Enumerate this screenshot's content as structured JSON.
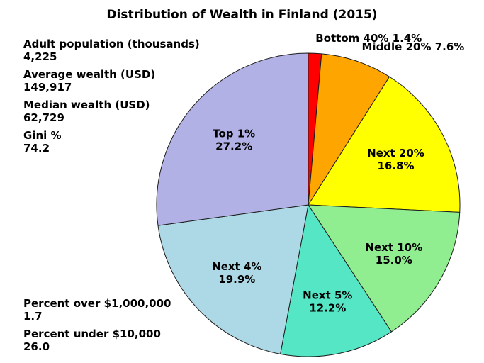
{
  "title": "Distribution of Wealth in Finland (2015)",
  "stats_top": [
    {
      "label": "Adult population (thousands)",
      "value": "4,225"
    },
    {
      "label": "Average wealth (USD)",
      "value": "149,917"
    },
    {
      "label": "Median wealth (USD)",
      "value": "62,729"
    },
    {
      "label": "Gini %",
      "value": "74.2"
    }
  ],
  "stats_bottom": [
    {
      "label": "Percent over $1,000,000",
      "value": "1.7"
    },
    {
      "label": "Percent under $10,000",
      "value": "26.0"
    }
  ],
  "chart_data": {
    "type": "pie",
    "title": "Distribution of Wealth in Finland (2015)",
    "categories": [
      "Bottom 40%",
      "Middle 20%",
      "Next 20%",
      "Next 10%",
      "Next 5%",
      "Next 4%",
      "Top 1%"
    ],
    "values": [
      1.4,
      7.6,
      16.8,
      15.0,
      12.2,
      19.9,
      27.2
    ],
    "colors": [
      "#fe0000",
      "#ffa500",
      "#ffff00",
      "#90ee90",
      "#54e6c5",
      "#add8e6",
      "#b1b1e6"
    ],
    "label_placement": [
      "outside",
      "outside",
      "inside",
      "inside",
      "inside",
      "inside",
      "inside"
    ],
    "start_angle": "top",
    "direction": "clockwise",
    "stroke": "#1c1c1c",
    "legend": "none"
  }
}
